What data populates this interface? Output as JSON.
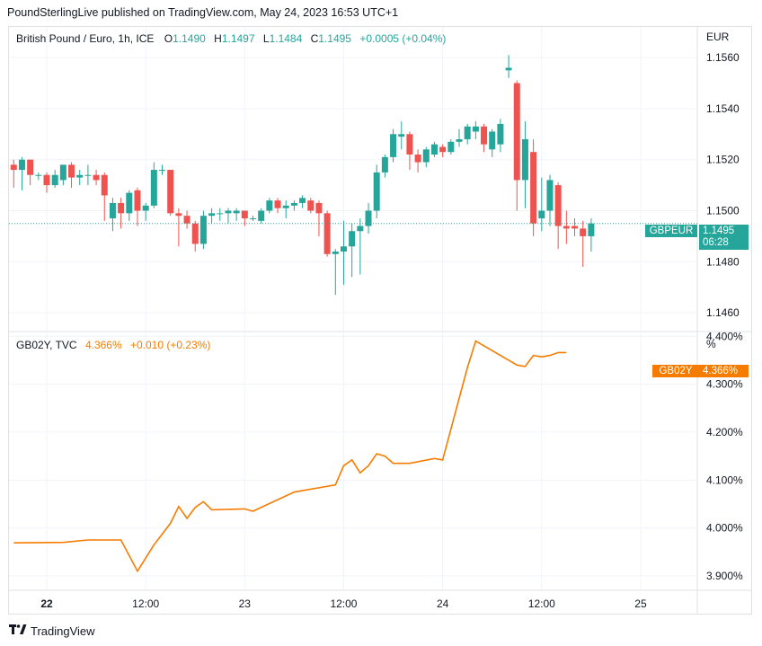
{
  "header": {
    "text": "PoundSterlingLive published on TradingView.com, May 24, 2023 16:53 UTC+1"
  },
  "upper": {
    "symbol": "British Pound / Euro, 1h, ICE",
    "o_label": "O",
    "o_value": "1.1490",
    "h_label": "H",
    "h_value": "1.1497",
    "l_label": "L",
    "l_value": "1.1484",
    "c_label": "C",
    "c_value": "1.1495",
    "change": "+0.0005 (+0.04%)",
    "currency": "EUR",
    "price_tag": "GBPEUR",
    "price_value": "1.1495",
    "countdown": "06:28"
  },
  "lower": {
    "symbol": "GB02Y, TVC",
    "value": "4.366%",
    "change": "+0.010 (+0.23%)",
    "unit": "%",
    "tag": "GB02Y",
    "tag_value": "4.366%"
  },
  "footer": {
    "brand": "TradingView"
  },
  "colors": {
    "up": "#26a69a",
    "down": "#ef5350",
    "line": "#f57c00",
    "grid": "#f0f3fa",
    "text": "#131722"
  },
  "chart_data": [
    {
      "type": "candlestick",
      "title": "British Pound / Euro, 1h, ICE",
      "ylabel": "EUR",
      "ylim": [
        1.1453,
        1.1572
      ],
      "yticks": [
        "1.1460",
        "1.1480",
        "1.1500",
        "1.1520",
        "1.1540",
        "1.1560"
      ],
      "xticks": [
        {
          "label": "22",
          "t": 0
        },
        {
          "label": "12:00",
          "t": 12
        },
        {
          "label": "23",
          "t": 24
        },
        {
          "label": "12:00",
          "t": 36
        },
        {
          "label": "24",
          "t": 48
        },
        {
          "label": "12:00",
          "t": 60
        },
        {
          "label": "25",
          "t": 72
        }
      ],
      "grid": true,
      "candles": [
        {
          "t": -4,
          "o": 1.1518,
          "h": 1.152,
          "l": 1.1509,
          "c": 1.1516
        },
        {
          "t": -3,
          "o": 1.1516,
          "h": 1.1521,
          "l": 1.1508,
          "c": 1.152
        },
        {
          "t": -2,
          "o": 1.152,
          "h": 1.152,
          "l": 1.151,
          "c": 1.1514
        },
        {
          "t": -1,
          "o": 1.1514,
          "h": 1.1515,
          "l": 1.1512,
          "c": 1.1514
        },
        {
          "t": 0,
          "o": 1.1514,
          "h": 1.1515,
          "l": 1.1507,
          "c": 1.151
        },
        {
          "t": 1,
          "o": 1.151,
          "h": 1.1516,
          "l": 1.1509,
          "c": 1.1514
        },
        {
          "t": 2,
          "o": 1.1512,
          "h": 1.1518,
          "l": 1.151,
          "c": 1.1518
        },
        {
          "t": 3,
          "o": 1.1518,
          "h": 1.1519,
          "l": 1.1509,
          "c": 1.1513
        },
        {
          "t": 4,
          "o": 1.1513,
          "h": 1.1516,
          "l": 1.151,
          "c": 1.1514
        },
        {
          "t": 5,
          "o": 1.1514,
          "h": 1.1518,
          "l": 1.151,
          "c": 1.1514
        },
        {
          "t": 6,
          "o": 1.1514,
          "h": 1.1516,
          "l": 1.151,
          "c": 1.1512
        },
        {
          "t": 7,
          "o": 1.1514,
          "h": 1.1515,
          "l": 1.1496,
          "c": 1.1506
        },
        {
          "t": 8,
          "o": 1.1497,
          "h": 1.1505,
          "l": 1.1492,
          "c": 1.1503
        },
        {
          "t": 9,
          "o": 1.1503,
          "h": 1.1505,
          "l": 1.1493,
          "c": 1.1499
        },
        {
          "t": 10,
          "o": 1.1499,
          "h": 1.1508,
          "l": 1.1496,
          "c": 1.1507
        },
        {
          "t": 11,
          "o": 1.1508,
          "h": 1.1509,
          "l": 1.1494,
          "c": 1.15
        },
        {
          "t": 12,
          "o": 1.15,
          "h": 1.1503,
          "l": 1.1496,
          "c": 1.1502
        },
        {
          "t": 13,
          "o": 1.1502,
          "h": 1.1519,
          "l": 1.1501,
          "c": 1.1516
        },
        {
          "t": 14,
          "o": 1.1516,
          "h": 1.1518,
          "l": 1.1514,
          "c": 1.1516
        },
        {
          "t": 15,
          "o": 1.1516,
          "h": 1.1516,
          "l": 1.1498,
          "c": 1.1499
        },
        {
          "t": 16,
          "o": 1.1499,
          "h": 1.1501,
          "l": 1.1486,
          "c": 1.1498
        },
        {
          "t": 17,
          "o": 1.1498,
          "h": 1.15,
          "l": 1.1493,
          "c": 1.1495
        },
        {
          "t": 18,
          "o": 1.1495,
          "h": 1.1496,
          "l": 1.1484,
          "c": 1.1487
        },
        {
          "t": 19,
          "o": 1.1487,
          "h": 1.15,
          "l": 1.1485,
          "c": 1.1498
        },
        {
          "t": 20,
          "o": 1.1498,
          "h": 1.1501,
          "l": 1.1495,
          "c": 1.1499
        },
        {
          "t": 21,
          "o": 1.1499,
          "h": 1.1501,
          "l": 1.1496,
          "c": 1.1499
        },
        {
          "t": 22,
          "o": 1.1499,
          "h": 1.1501,
          "l": 1.1495,
          "c": 1.15
        },
        {
          "t": 23,
          "o": 1.1499,
          "h": 1.1501,
          "l": 1.1496,
          "c": 1.15
        },
        {
          "t": 24,
          "o": 1.15,
          "h": 1.15,
          "l": 1.1494,
          "c": 1.1497
        },
        {
          "t": 25,
          "o": 1.1497,
          "h": 1.1498,
          "l": 1.1496,
          "c": 1.1497
        },
        {
          "t": 26,
          "o": 1.1496,
          "h": 1.1501,
          "l": 1.1495,
          "c": 1.15
        },
        {
          "t": 27,
          "o": 1.15,
          "h": 1.1505,
          "l": 1.1499,
          "c": 1.1504
        },
        {
          "t": 28,
          "o": 1.1504,
          "h": 1.1505,
          "l": 1.1499,
          "c": 1.1501
        },
        {
          "t": 29,
          "o": 1.1501,
          "h": 1.1504,
          "l": 1.1497,
          "c": 1.1502
        },
        {
          "t": 30,
          "o": 1.1502,
          "h": 1.1504,
          "l": 1.15,
          "c": 1.1503
        },
        {
          "t": 31,
          "o": 1.1503,
          "h": 1.1506,
          "l": 1.1501,
          "c": 1.1505
        },
        {
          "t": 32,
          "o": 1.1504,
          "h": 1.1505,
          "l": 1.1499,
          "c": 1.15
        },
        {
          "t": 33,
          "o": 1.1503,
          "h": 1.1504,
          "l": 1.149,
          "c": 1.1499
        },
        {
          "t": 34,
          "o": 1.1499,
          "h": 1.15,
          "l": 1.1482,
          "c": 1.1483
        },
        {
          "t": 35,
          "o": 1.1483,
          "h": 1.1485,
          "l": 1.1467,
          "c": 1.1484
        },
        {
          "t": 36,
          "o": 1.1484,
          "h": 1.1496,
          "l": 1.1471,
          "c": 1.1486
        },
        {
          "t": 37,
          "o": 1.1486,
          "h": 1.1495,
          "l": 1.1474,
          "c": 1.1492
        },
        {
          "t": 38,
          "o": 1.1492,
          "h": 1.1497,
          "l": 1.1475,
          "c": 1.1494
        },
        {
          "t": 39,
          "o": 1.1494,
          "h": 1.1503,
          "l": 1.1491,
          "c": 1.15
        },
        {
          "t": 40,
          "o": 1.15,
          "h": 1.1518,
          "l": 1.1497,
          "c": 1.1515
        },
        {
          "t": 41,
          "o": 1.1515,
          "h": 1.1522,
          "l": 1.1513,
          "c": 1.1521
        },
        {
          "t": 42,
          "o": 1.1521,
          "h": 1.1532,
          "l": 1.1519,
          "c": 1.153
        },
        {
          "t": 43,
          "o": 1.1529,
          "h": 1.1535,
          "l": 1.1524,
          "c": 1.153
        },
        {
          "t": 44,
          "o": 1.153,
          "h": 1.1531,
          "l": 1.1516,
          "c": 1.1522
        },
        {
          "t": 45,
          "o": 1.1522,
          "h": 1.1524,
          "l": 1.1515,
          "c": 1.1519
        },
        {
          "t": 46,
          "o": 1.1519,
          "h": 1.1525,
          "l": 1.1517,
          "c": 1.1524
        },
        {
          "t": 47,
          "o": 1.1522,
          "h": 1.1527,
          "l": 1.1521,
          "c": 1.1526
        },
        {
          "t": 48,
          "o": 1.1525,
          "h": 1.1526,
          "l": 1.1521,
          "c": 1.1523
        },
        {
          "t": 49,
          "o": 1.1523,
          "h": 1.1528,
          "l": 1.1522,
          "c": 1.1527
        },
        {
          "t": 50,
          "o": 1.1527,
          "h": 1.1532,
          "l": 1.1525,
          "c": 1.1528
        },
        {
          "t": 51,
          "o": 1.1528,
          "h": 1.1534,
          "l": 1.1526,
          "c": 1.1533
        },
        {
          "t": 52,
          "o": 1.1531,
          "h": 1.1535,
          "l": 1.1528,
          "c": 1.1533
        },
        {
          "t": 53,
          "o": 1.1533,
          "h": 1.1534,
          "l": 1.1523,
          "c": 1.1526
        },
        {
          "t": 54,
          "o": 1.1524,
          "h": 1.1532,
          "l": 1.1521,
          "c": 1.1531
        },
        {
          "t": 55,
          "o": 1.1526,
          "h": 1.1536,
          "l": 1.1523,
          "c": 1.1534
        },
        {
          "t": 56,
          "o": 1.1555,
          "h": 1.1561,
          "l": 1.1552,
          "c": 1.1556
        },
        {
          "t": 57,
          "o": 1.155,
          "h": 1.1551,
          "l": 1.15,
          "c": 1.1512
        },
        {
          "t": 58,
          "o": 1.1512,
          "h": 1.1535,
          "l": 1.1501,
          "c": 1.1528
        },
        {
          "t": 59,
          "o": 1.1523,
          "h": 1.1528,
          "l": 1.149,
          "c": 1.1495
        },
        {
          "t": 60,
          "o": 1.1497,
          "h": 1.1513,
          "l": 1.1492,
          "c": 1.15
        },
        {
          "t": 61,
          "o": 1.15,
          "h": 1.1514,
          "l": 1.1494,
          "c": 1.1512
        },
        {
          "t": 62,
          "o": 1.151,
          "h": 1.1511,
          "l": 1.1485,
          "c": 1.1494
        },
        {
          "t": 63,
          "o": 1.1494,
          "h": 1.15,
          "l": 1.1487,
          "c": 1.1493
        },
        {
          "t": 64,
          "o": 1.1494,
          "h": 1.1497,
          "l": 1.149,
          "c": 1.1493
        },
        {
          "t": 65,
          "o": 1.1493,
          "h": 1.1496,
          "l": 1.1478,
          "c": 1.149
        },
        {
          "t": 66,
          "o": 1.149,
          "h": 1.1497,
          "l": 1.1484,
          "c": 1.1495
        }
      ]
    },
    {
      "type": "line",
      "title": "GB02Y, TVC",
      "ylabel": "%",
      "ylim": [
        3.872,
        4.408
      ],
      "yticks": [
        "3.900%",
        "4.000%",
        "4.100%",
        "4.200%",
        "4.300%",
        "4.400%"
      ],
      "grid": true,
      "series": [
        {
          "x": [
            -4,
            2,
            5,
            9,
            11,
            13,
            15,
            16,
            17,
            18,
            19,
            20,
            24,
            25,
            30,
            35,
            36,
            37,
            38,
            39,
            40,
            41,
            42,
            43,
            44,
            47,
            48,
            51,
            52,
            56,
            57,
            58,
            59,
            60,
            61,
            62,
            63
          ],
          "y": [
            3.969,
            3.97,
            3.975,
            3.975,
            3.91,
            3.965,
            4.01,
            4.045,
            4.02,
            4.043,
            4.055,
            4.038,
            4.04,
            4.035,
            4.075,
            4.09,
            4.13,
            4.142,
            4.115,
            4.13,
            4.155,
            4.15,
            4.135,
            4.135,
            4.135,
            4.145,
            4.142,
            4.335,
            4.39,
            4.35,
            4.34,
            4.337,
            4.36,
            4.357,
            4.36,
            4.366,
            4.366
          ]
        }
      ]
    }
  ]
}
